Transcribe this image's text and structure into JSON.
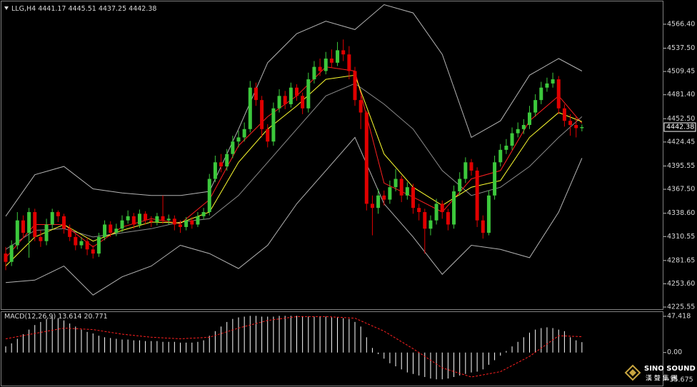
{
  "chart_data": [
    {
      "type": "candlestick",
      "title": "LLG,H4",
      "up_color": "#3cc83c",
      "down_color": "#e00000",
      "open": [
        4290,
        4280,
        4300,
        4330,
        4315,
        4340,
        4310,
        4305,
        4325,
        4340,
        4335,
        4320,
        4310,
        4300,
        4305,
        4295,
        4290,
        4310,
        4325,
        4315,
        4320,
        4330,
        4335,
        4325,
        4338,
        4330,
        4328,
        4335,
        4330,
        4332,
        4325,
        4322,
        4330,
        4325,
        4335,
        4340,
        4380,
        4400,
        4395,
        4410,
        4425,
        4430,
        4440,
        4490,
        4475,
        4440,
        4425,
        4465,
        4480,
        4470,
        4490,
        4480,
        4465,
        4500,
        4515,
        4510,
        4525,
        4520,
        4535,
        4530,
        4510,
        4475,
        4460,
        4350,
        4345,
        4360,
        4355,
        4370,
        4380,
        4360,
        4370,
        4345,
        4340,
        4320,
        4330,
        4350,
        4340,
        4325,
        4365,
        4380,
        4400,
        4390,
        4330,
        4315,
        4360,
        4400,
        4415,
        4420,
        4435,
        4440,
        4445,
        4460,
        4475,
        4490,
        4495,
        4500,
        4465,
        4450,
        4445,
        4441.17
      ],
      "high": [
        4298,
        4306,
        4340,
        4336,
        4345,
        4344,
        4318,
        4332,
        4344,
        4342,
        4338,
        4325,
        4314,
        4310,
        4309,
        4300,
        4315,
        4330,
        4329,
        4326,
        4336,
        4342,
        4339,
        4343,
        4341,
        4335,
        4339,
        4360,
        4337,
        4336,
        4330,
        4334,
        4334,
        4340,
        4345,
        4386,
        4408,
        4410,
        4416,
        4432,
        4438,
        4448,
        4498,
        4496,
        4480,
        4446,
        4472,
        4488,
        4486,
        4496,
        4494,
        4484,
        4508,
        4522,
        4525,
        4533,
        4536,
        4545,
        4548,
        4540,
        4515,
        4480,
        4462,
        4360,
        4368,
        4366,
        4378,
        4392,
        4384,
        4376,
        4374,
        4350,
        4344,
        4336,
        4356,
        4354,
        4344,
        4372,
        4388,
        4406,
        4404,
        4394,
        4336,
        4366,
        4408,
        4422,
        4428,
        4442,
        4448,
        4452,
        4468,
        4482,
        4497,
        4502,
        4508,
        4504,
        4470,
        4458,
        4455,
        4445.51
      ],
      "low": [
        4270,
        4275,
        4295,
        4310,
        4285,
        4305,
        4298,
        4300,
        4320,
        4328,
        4314,
        4305,
        4294,
        4296,
        4288,
        4284,
        4286,
        4306,
        4310,
        4311,
        4316,
        4326,
        4320,
        4321,
        4325,
        4322,
        4324,
        4326,
        4325,
        4318,
        4315,
        4318,
        4320,
        4322,
        4331,
        4336,
        4376,
        4388,
        4390,
        4405,
        4418,
        4425,
        4436,
        4468,
        4430,
        4418,
        4420,
        4460,
        4464,
        4466,
        4474,
        4458,
        4460,
        4495,
        4504,
        4506,
        4514,
        4516,
        4522,
        4500,
        4468,
        4440,
        4342,
        4312,
        4338,
        4348,
        4350,
        4365,
        4352,
        4355,
        4338,
        4330,
        4290,
        4312,
        4325,
        4332,
        4318,
        4320,
        4360,
        4375,
        4384,
        4322,
        4308,
        4312,
        4355,
        4395,
        4410,
        4415,
        4430,
        4434,
        4440,
        4455,
        4470,
        4485,
        4490,
        4458,
        4443,
        4432,
        4430,
        4437.25
      ],
      "close": [
        4280,
        4300,
        4330,
        4315,
        4340,
        4310,
        4305,
        4325,
        4340,
        4335,
        4320,
        4310,
        4300,
        4305,
        4295,
        4290,
        4310,
        4325,
        4315,
        4320,
        4330,
        4335,
        4325,
        4338,
        4330,
        4328,
        4335,
        4330,
        4332,
        4325,
        4322,
        4330,
        4325,
        4335,
        4340,
        4380,
        4400,
        4395,
        4410,
        4425,
        4430,
        4440,
        4490,
        4475,
        4440,
        4425,
        4465,
        4480,
        4470,
        4490,
        4480,
        4465,
        4500,
        4515,
        4510,
        4525,
        4520,
        4535,
        4530,
        4510,
        4475,
        4460,
        4350,
        4345,
        4360,
        4355,
        4370,
        4380,
        4360,
        4370,
        4345,
        4340,
        4320,
        4330,
        4350,
        4340,
        4325,
        4365,
        4380,
        4400,
        4390,
        4330,
        4315,
        4360,
        4400,
        4415,
        4420,
        4435,
        4440,
        4445,
        4460,
        4475,
        4490,
        4495,
        4500,
        4465,
        4450,
        4445,
        4441.17,
        4442.38
      ],
      "lines": [
        {
          "color": "#b4b4b4",
          "x": [
            0,
            5,
            10,
            15,
            20,
            25,
            30,
            35,
            40,
            45,
            50,
            55,
            60,
            65,
            70,
            75,
            80,
            85,
            90,
            95,
            99
          ],
          "values": [
            4335,
            4385,
            4395,
            4368,
            4363,
            4360,
            4360,
            4365,
            4440,
            4520,
            4555,
            4570,
            4560,
            4590,
            4580,
            4530,
            4430,
            4450,
            4505,
            4525,
            4510
          ]
        },
        {
          "color": "#8c8c8c",
          "x": [
            0,
            5,
            10,
            15,
            20,
            25,
            30,
            35,
            40,
            45,
            50,
            55,
            60,
            65,
            70,
            75,
            80,
            85,
            90,
            95,
            99
          ],
          "values": [
            4295,
            4318,
            4320,
            4310,
            4315,
            4320,
            4328,
            4332,
            4360,
            4400,
            4440,
            4480,
            4495,
            4470,
            4440,
            4390,
            4360,
            4370,
            4395,
            4430,
            4455
          ]
        },
        {
          "color": "#b4b4b4",
          "x": [
            0,
            5,
            10,
            15,
            20,
            25,
            30,
            35,
            40,
            45,
            50,
            55,
            60,
            65,
            70,
            75,
            80,
            85,
            90,
            95,
            99
          ],
          "values": [
            4255,
            4258,
            4275,
            4240,
            4262,
            4275,
            4300,
            4290,
            4272,
            4300,
            4350,
            4390,
            4430,
            4350,
            4310,
            4265,
            4300,
            4295,
            4285,
            4340,
            4405
          ]
        },
        {
          "color": "#ff2020",
          "x": [
            0,
            5,
            10,
            15,
            20,
            25,
            30,
            35,
            40,
            45,
            50,
            55,
            60,
            65,
            70,
            75,
            80,
            85,
            90,
            95,
            99
          ],
          "values": [
            4285,
            4325,
            4325,
            4298,
            4322,
            4332,
            4326,
            4355,
            4420,
            4455,
            4480,
            4515,
            4510,
            4375,
            4358,
            4340,
            4380,
            4390,
            4450,
            4480,
            4447
          ]
        },
        {
          "color": "#ffff30",
          "x": [
            0,
            5,
            10,
            15,
            20,
            25,
            30,
            35,
            40,
            45,
            50,
            55,
            60,
            65,
            70,
            75,
            80,
            85,
            90,
            95,
            99
          ],
          "values": [
            4275,
            4310,
            4325,
            4305,
            4318,
            4328,
            4327,
            4340,
            4400,
            4440,
            4468,
            4500,
            4505,
            4410,
            4370,
            4348,
            4370,
            4378,
            4430,
            4460,
            4449
          ]
        }
      ],
      "ylim": [
        4223,
        4593
      ],
      "yticks": [
        {
          "value": 4566.4,
          "label": "4566.40"
        },
        {
          "value": 4537.5,
          "label": "4537.50"
        },
        4509.45,
        {
          "value": 4481.4,
          "label": "4481.40"
        },
        {
          "value": 4452.5,
          "label": "4452.50"
        },
        4424.45,
        4395.55,
        {
          "value": 4367.5,
          "label": "4367.50"
        },
        {
          "value": 4338.6,
          "label": "4338.60"
        },
        4310.55,
        4281.65,
        {
          "value": 4253.6,
          "label": "4253.60"
        },
        4225.55
      ]
    },
    {
      "type": "macd",
      "title": "MACD(12,26,9)",
      "histogram": {
        "color": "#ffffff",
        "values": [
          8,
          12,
          18,
          24,
          30,
          36,
          40,
          44,
          46,
          45,
          42,
          38,
          34,
          30,
          27,
          25,
          22,
          20,
          19,
          18,
          17,
          17,
          16,
          16,
          15,
          15,
          15,
          14,
          14,
          14,
          13,
          13,
          13,
          14,
          16,
          22,
          28,
          34,
          40,
          44,
          46,
          47,
          48,
          48,
          47,
          47,
          47,
          48,
          48,
          48,
          48,
          47,
          47,
          47,
          47,
          47,
          46,
          46,
          45,
          44,
          40,
          34,
          20,
          6,
          -2,
          -8,
          -14,
          -18,
          -22,
          -26,
          -28,
          -30,
          -32,
          -34,
          -35,
          -35,
          -34,
          -32,
          -30,
          -28,
          -26,
          -25,
          -22,
          -16,
          -10,
          -4,
          2,
          8,
          14,
          20,
          26,
          30,
          32,
          33,
          32,
          30,
          28,
          20,
          16,
          13.614
        ]
      },
      "signal": {
        "color": "#ff2020",
        "x": [
          0,
          5,
          10,
          15,
          20,
          25,
          30,
          35,
          40,
          45,
          50,
          55,
          60,
          65,
          70,
          75,
          80,
          85,
          90,
          95,
          99
        ],
        "values": [
          18,
          25,
          32,
          30,
          24,
          20,
          18,
          20,
          32,
          42,
          47,
          47,
          45,
          28,
          5,
          -20,
          -32,
          -25,
          -5,
          22,
          20.771
        ]
      },
      "ylim": [
        -43.2,
        53
      ],
      "yticks": [
        47.418,
        {
          "value": 0,
          "label": "0.00"
        },
        -35.675
      ]
    }
  ],
  "logo": {
    "name": "SINO SOUND",
    "subtitle": "漢 聲 集 團"
  }
}
